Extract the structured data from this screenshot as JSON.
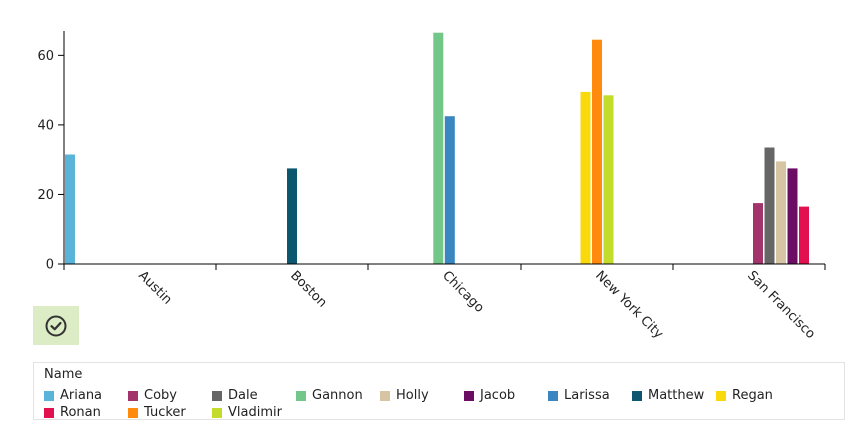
{
  "chart_data": {
    "type": "bar",
    "categories": [
      "Austin",
      "Boston",
      "Chicago",
      "New York City",
      "San Francisco"
    ],
    "ylim": [
      0,
      67
    ],
    "yticks": [
      0,
      20,
      40,
      60
    ],
    "grid": false,
    "legend_title": "Name",
    "legend_position": "bottom",
    "series": [
      {
        "name": "Ariana",
        "color": "#5ab4da",
        "values": [
          31.5,
          null,
          null,
          null,
          null
        ]
      },
      {
        "name": "Coby",
        "color": "#a3336b",
        "values": [
          null,
          null,
          null,
          null,
          17.5
        ]
      },
      {
        "name": "Dale",
        "color": "#666666",
        "values": [
          null,
          null,
          null,
          null,
          33.5
        ]
      },
      {
        "name": "Gannon",
        "color": "#72c789",
        "values": [
          null,
          null,
          66.5,
          null,
          null
        ]
      },
      {
        "name": "Holly",
        "color": "#d6c4a3",
        "values": [
          null,
          null,
          null,
          null,
          29.5
        ]
      },
      {
        "name": "Jacob",
        "color": "#6b0e63",
        "values": [
          null,
          null,
          null,
          null,
          27.5
        ]
      },
      {
        "name": "Larissa",
        "color": "#3a86c0",
        "values": [
          null,
          null,
          42.5,
          null,
          null
        ]
      },
      {
        "name": "Matthew",
        "color": "#0c566e",
        "values": [
          null,
          27.5,
          null,
          null,
          null
        ]
      },
      {
        "name": "Regan",
        "color": "#f9d80c",
        "values": [
          null,
          null,
          null,
          49.5,
          null
        ]
      },
      {
        "name": "Ronan",
        "color": "#e3104f",
        "values": [
          null,
          null,
          null,
          null,
          16.5
        ]
      },
      {
        "name": "Tucker",
        "color": "#ff8a0d",
        "values": [
          null,
          null,
          null,
          64.5,
          null
        ]
      },
      {
        "name": "Vladimir",
        "color": "#c3db2b",
        "values": [
          null,
          null,
          null,
          48.5,
          null
        ]
      }
    ]
  },
  "toolbar": {
    "check_icon": "check-circle-icon",
    "check_bg": "#dcecc4"
  }
}
